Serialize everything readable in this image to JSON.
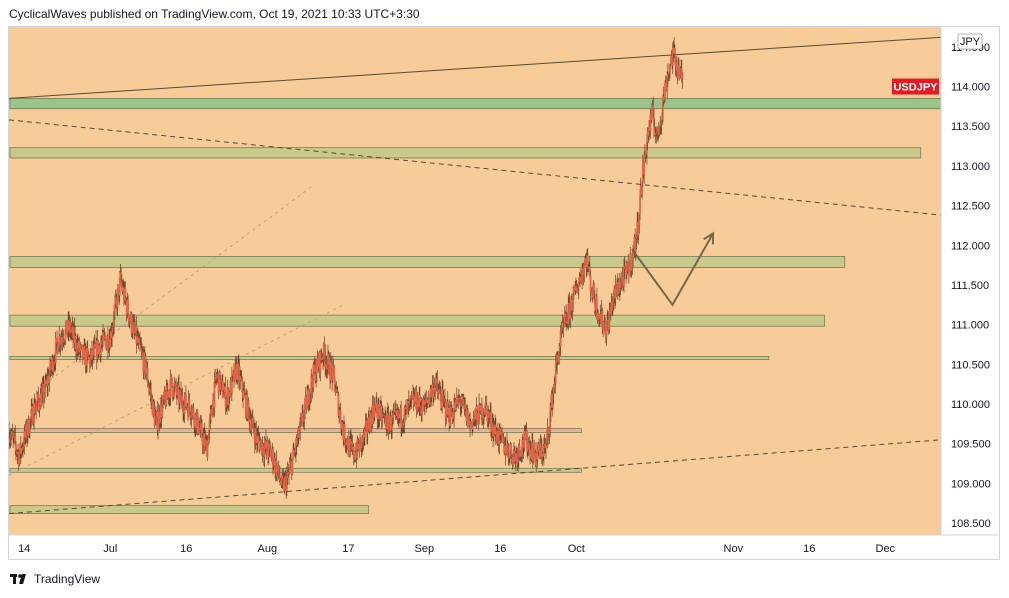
{
  "header": {
    "text": "CyclicalWaves published on TradingView.com, Oct 19, 2021 10:33 UTC+3:30"
  },
  "footer": {
    "brand": "TradingView"
  },
  "colors": {
    "background": "#f8cc98",
    "zone_fill": "#c8c98a",
    "zone_green": "#9cc38a",
    "zone_red": "#e8b39a",
    "candle": "#e0664a",
    "wick": "#6b3a22",
    "line": "#5a4a32",
    "badge": "#e01b24",
    "axis_bg": "#ffffff"
  },
  "chart_data": {
    "type": "candlestick",
    "symbol": "USDJPY",
    "currency_label": "JPY",
    "current_price_label": "114.000",
    "ylim": [
      108.35,
      114.75
    ],
    "y_ticks": [
      "114.500",
      "114.000",
      "113.500",
      "113.000",
      "112.500",
      "112.000",
      "111.500",
      "111.000",
      "110.500",
      "110.000",
      "109.500",
      "109.000",
      "108.500"
    ],
    "x_range": [
      "2021-06-11",
      "2021-12-12"
    ],
    "x_ticks": [
      {
        "date": "2021-06-14",
        "label": "14"
      },
      {
        "date": "2021-07-01",
        "label": "Jul"
      },
      {
        "date": "2021-07-16",
        "label": "16"
      },
      {
        "date": "2021-08-01",
        "label": "Aug"
      },
      {
        "date": "2021-08-17",
        "label": "17"
      },
      {
        "date": "2021-09-01",
        "label": "Sep"
      },
      {
        "date": "2021-09-16",
        "label": "16"
      },
      {
        "date": "2021-10-01",
        "label": "Oct"
      },
      {
        "date": "2021-11-01",
        "label": "Nov"
      },
      {
        "date": "2021-11-16",
        "label": "16"
      },
      {
        "date": "2021-12-01",
        "label": "Dec"
      }
    ],
    "path_points": [
      [
        "2021-06-11",
        109.65
      ],
      [
        "2021-06-13",
        109.35
      ],
      [
        "2021-06-16",
        109.95
      ],
      [
        "2021-06-18",
        110.15
      ],
      [
        "2021-06-21",
        110.85
      ],
      [
        "2021-06-23",
        110.95
      ],
      [
        "2021-06-25",
        110.65
      ],
      [
        "2021-06-27",
        110.55
      ],
      [
        "2021-06-29",
        110.75
      ],
      [
        "2021-07-01",
        110.85
      ],
      [
        "2021-07-03",
        111.55
      ],
      [
        "2021-07-05",
        111.05
      ],
      [
        "2021-07-08",
        110.45
      ],
      [
        "2021-07-10",
        109.75
      ],
      [
        "2021-07-13",
        110.25
      ],
      [
        "2021-07-15",
        110.05
      ],
      [
        "2021-07-17",
        109.95
      ],
      [
        "2021-07-20",
        109.45
      ],
      [
        "2021-07-22",
        110.35
      ],
      [
        "2021-07-24",
        110.05
      ],
      [
        "2021-07-26",
        110.45
      ],
      [
        "2021-07-28",
        109.95
      ],
      [
        "2021-07-30",
        109.55
      ],
      [
        "2021-08-02",
        109.35
      ],
      [
        "2021-08-04",
        108.95
      ],
      [
        "2021-08-05",
        109.05
      ],
      [
        "2021-08-07",
        109.55
      ],
      [
        "2021-08-10",
        110.35
      ],
      [
        "2021-08-12",
        110.65
      ],
      [
        "2021-08-14",
        110.35
      ],
      [
        "2021-08-16",
        109.65
      ],
      [
        "2021-08-18",
        109.35
      ],
      [
        "2021-08-20",
        109.55
      ],
      [
        "2021-08-22",
        109.95
      ],
      [
        "2021-08-25",
        109.75
      ],
      [
        "2021-08-28",
        109.85
      ],
      [
        "2021-08-30",
        110.05
      ],
      [
        "2021-09-01",
        109.95
      ],
      [
        "2021-09-03",
        110.25
      ],
      [
        "2021-09-06",
        109.85
      ],
      [
        "2021-09-08",
        110.05
      ],
      [
        "2021-09-10",
        109.75
      ],
      [
        "2021-09-13",
        109.95
      ],
      [
        "2021-09-15",
        109.65
      ],
      [
        "2021-09-17",
        109.45
      ],
      [
        "2021-09-19",
        109.35
      ],
      [
        "2021-09-21",
        109.55
      ],
      [
        "2021-09-23",
        109.35
      ],
      [
        "2021-09-25",
        109.45
      ],
      [
        "2021-09-27",
        110.45
      ],
      [
        "2021-09-28",
        110.85
      ],
      [
        "2021-09-30",
        111.25
      ],
      [
        "2021-10-02",
        111.65
      ],
      [
        "2021-10-03",
        111.85
      ],
      [
        "2021-10-04",
        111.45
      ],
      [
        "2021-10-05",
        111.25
      ],
      [
        "2021-10-06",
        111.05
      ],
      [
        "2021-10-07",
        110.95
      ],
      [
        "2021-10-08",
        111.25
      ],
      [
        "2021-10-09",
        111.45
      ],
      [
        "2021-10-11",
        111.65
      ],
      [
        "2021-10-12",
        111.85
      ],
      [
        "2021-10-13",
        112.15
      ],
      [
        "2021-10-14",
        112.85
      ],
      [
        "2021-10-15",
        113.35
      ],
      [
        "2021-10-16",
        113.65
      ],
      [
        "2021-10-17",
        113.35
      ],
      [
        "2021-10-18",
        113.75
      ],
      [
        "2021-10-19",
        114.15
      ],
      [
        "2021-10-20",
        114.4
      ],
      [
        "2021-10-21",
        114.25
      ],
      [
        "2021-10-22",
        114.05
      ]
    ],
    "zones": [
      {
        "from": 113.72,
        "to": 113.85,
        "x_end": "2021-12-12",
        "color": "green"
      },
      {
        "from": 113.1,
        "to": 113.23,
        "x_end": "2021-12-08",
        "color": "fill"
      },
      {
        "from": 111.72,
        "to": 111.86,
        "x_end": "2021-11-23",
        "color": "fill"
      },
      {
        "from": 110.98,
        "to": 111.12,
        "x_end": "2021-11-19",
        "color": "fill"
      },
      {
        "from": 110.56,
        "to": 110.6,
        "x_end": "2021-11-08",
        "color": "fill"
      },
      {
        "from": 109.64,
        "to": 109.69,
        "x_end": "2021-10-02",
        "color": "red"
      },
      {
        "from": 109.14,
        "to": 109.19,
        "x_end": "2021-10-02",
        "color": "fill"
      },
      {
        "from": 108.62,
        "to": 108.72,
        "x_end": "2021-08-21",
        "color": "fill"
      }
    ],
    "trend_lines": [
      {
        "x1": "2021-06-11",
        "y1": 113.85,
        "x2": "2021-12-12",
        "y2": 114.62,
        "style": "solid"
      },
      {
        "x1": "2021-06-11",
        "y1": 113.58,
        "x2": "2021-12-12",
        "y2": 112.38,
        "style": "dashed"
      },
      {
        "x1": "2021-06-11",
        "y1": 108.62,
        "x2": "2021-12-12",
        "y2": 109.55,
        "style": "dashed"
      },
      {
        "x1": "2021-06-11",
        "y1": 109.1,
        "x2": "2021-08-16",
        "y2": 111.25,
        "style": "dotted"
      },
      {
        "x1": "2021-06-18",
        "y1": 110.25,
        "x2": "2021-08-10",
        "y2": 112.75,
        "style": "dotted"
      }
    ],
    "projection": [
      [
        "2021-10-12",
        111.95
      ],
      [
        "2021-10-20",
        111.25
      ],
      [
        "2021-10-28",
        112.15
      ]
    ]
  }
}
